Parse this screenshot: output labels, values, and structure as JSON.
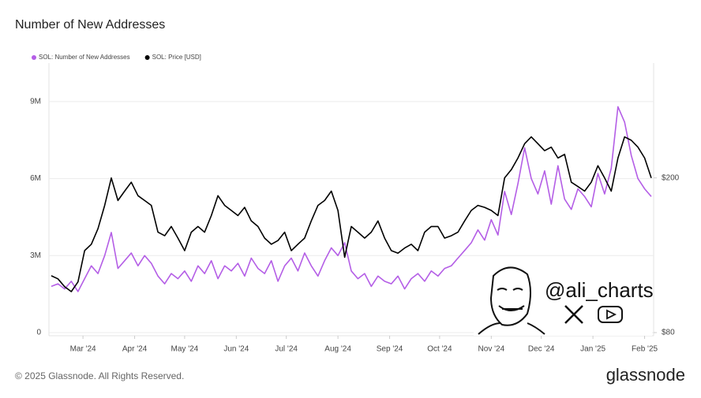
{
  "chart_data": {
    "type": "line",
    "title": "Number of New Addresses",
    "xlim": [
      0,
      90
    ],
    "xticks": [
      {
        "value": 4.75,
        "label": "Mar '24"
      },
      {
        "value": 12.5,
        "label": "Apr '24"
      },
      {
        "value": 20,
        "label": "May '24"
      },
      {
        "value": 27.75,
        "label": "Jun '24"
      },
      {
        "value": 35.25,
        "label": "Jul '24"
      },
      {
        "value": 43,
        "label": "Aug '24"
      },
      {
        "value": 50.75,
        "label": "Sep '24"
      },
      {
        "value": 58.25,
        "label": "Oct '24"
      },
      {
        "value": 66,
        "label": "Nov '24"
      },
      {
        "value": 73.5,
        "label": "Dec '24"
      },
      {
        "value": 81.25,
        "label": "Jan '25"
      },
      {
        "value": 89,
        "label": "Feb '25"
      }
    ],
    "ylim": [
      0,
      10500000
    ],
    "yticks": [
      0,
      {
        "value": 3000000,
        "label": "3M"
      },
      {
        "value": 6000000,
        "label": "6M"
      },
      {
        "value": 9000000,
        "label": "9M"
      }
    ],
    "y2lim": [
      80,
      395
    ],
    "y2scale": "log",
    "y2ticks": [
      {
        "value": 80,
        "label": "$80"
      },
      {
        "value": 200,
        "label": "$200"
      }
    ],
    "grid": true,
    "series": [
      {
        "name": "SOL: Number of New Addresses",
        "color": "#b45ee6",
        "values": [
          1800000,
          1900000,
          1700000,
          2000000,
          1600000,
          2100000,
          2600000,
          2300000,
          3000000,
          3900000,
          2500000,
          2800000,
          3100000,
          2600000,
          3000000,
          2700000,
          2200000,
          1900000,
          2300000,
          2100000,
          2400000,
          2000000,
          2600000,
          2300000,
          2800000,
          2100000,
          2600000,
          2400000,
          2700000,
          2200000,
          2900000,
          2500000,
          2300000,
          2800000,
          2000000,
          2600000,
          2900000,
          2400000,
          3100000,
          2600000,
          2200000,
          2800000,
          3300000,
          3000000,
          3500000,
          2400000,
          2100000,
          2300000,
          1800000,
          2200000,
          2000000,
          1900000,
          2200000,
          1700000,
          2100000,
          2300000,
          2000000,
          2400000,
          2200000,
          2500000,
          2600000,
          2900000,
          3200000,
          3500000,
          4000000,
          3600000,
          4400000,
          3800000,
          5500000,
          4600000,
          5800000,
          7200000,
          6000000,
          5400000,
          6300000,
          5000000,
          6500000,
          5200000,
          4800000,
          5600000,
          5300000,
          4900000,
          6200000,
          5400000,
          6400000,
          8800000,
          8200000,
          6900000,
          6000000,
          5600000,
          5300000
        ]
      },
      {
        "name": "SOL: Price [USD]",
        "color": "#000000",
        "axis": "y2",
        "values": [
          112,
          110,
          105,
          102,
          108,
          130,
          135,
          148,
          170,
          200,
          175,
          185,
          195,
          180,
          175,
          170,
          145,
          142,
          150,
          140,
          130,
          145,
          150,
          145,
          160,
          180,
          170,
          165,
          160,
          168,
          155,
          150,
          140,
          135,
          138,
          145,
          130,
          135,
          140,
          155,
          170,
          175,
          185,
          165,
          125,
          150,
          145,
          140,
          145,
          155,
          140,
          130,
          128,
          132,
          135,
          130,
          145,
          150,
          150,
          140,
          142,
          145,
          155,
          165,
          170,
          168,
          165,
          160,
          200,
          210,
          225,
          245,
          255,
          245,
          235,
          240,
          225,
          230,
          195,
          190,
          185,
          195,
          215,
          200,
          185,
          225,
          255,
          250,
          240,
          225,
          200
        ]
      }
    ],
    "legend": "top-left",
    "footer": "© 2025 Glassnode. All Rights Reserved.",
    "brand": "glassnode",
    "watermark": "@ali_charts"
  }
}
